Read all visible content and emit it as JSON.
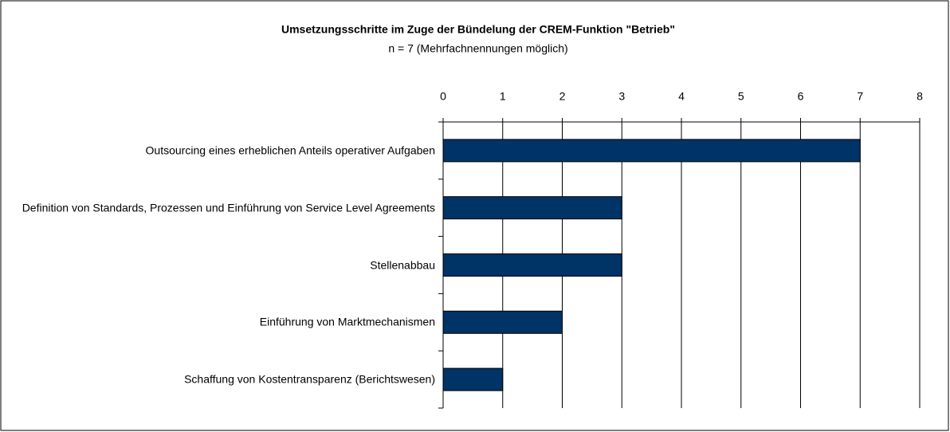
{
  "chart_data": {
    "type": "bar",
    "orientation": "horizontal",
    "title": "Umsetzungsschritte im Zuge der Bündelung der CREM-Funktion \"Betrieb\"",
    "subtitle": "n = 7 (Mehrfachnennungen möglich)",
    "categories": [
      "Outsourcing eines erheblichen Anteils operativer Aufgaben",
      "Definition von Standards, Prozessen und Einführung von Service Level Agreements",
      "Stellenabbau",
      "Einführung von Marktmechanismen",
      "Schaffung von Kostentransparenz (Berichtswesen)"
    ],
    "values": [
      7,
      3,
      3,
      2,
      1
    ],
    "color": "#003366",
    "xlim": [
      0,
      8
    ],
    "xticks": [
      0,
      1,
      2,
      3,
      4,
      5,
      6,
      7,
      8
    ],
    "grid": true
  }
}
